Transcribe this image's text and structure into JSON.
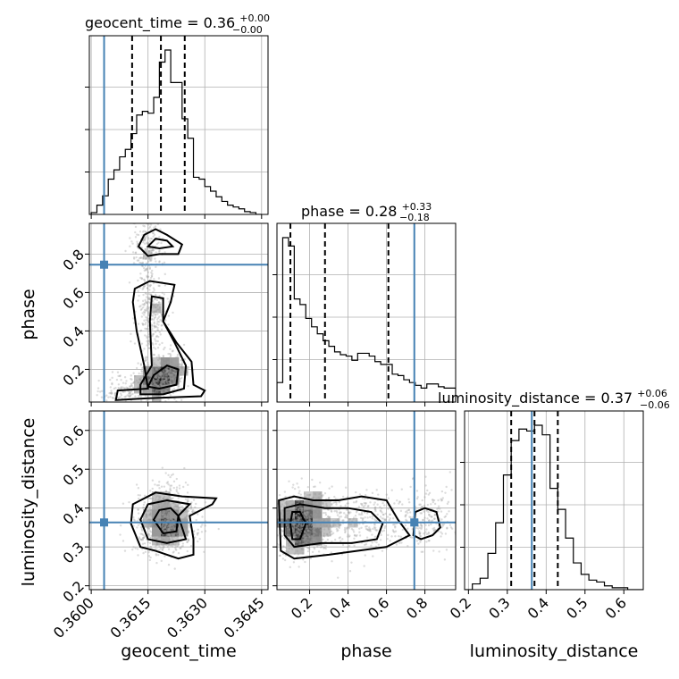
{
  "chart_data": {
    "type": "corner",
    "parameters": [
      "geocent_time",
      "phase",
      "luminosity_distance"
    ],
    "axis_labels": {
      "geocent_time": "geocent_time",
      "phase": "phase",
      "luminosity_distance": "luminosity_distance"
    },
    "titles": {
      "geocent_time": {
        "name": "geocent_time",
        "median": "0.36",
        "plus": "+0.00",
        "minus": "−0.00"
      },
      "phase": {
        "name": "phase",
        "median": "0.28",
        "plus": "+0.33",
        "minus": "−0.18"
      },
      "luminosity_distance": {
        "name": "luminosity_distance",
        "median": "0.37",
        "plus": "+0.06",
        "minus": "−0.06"
      }
    },
    "ranges": {
      "geocent_time": [
        0.35995,
        0.36467
      ],
      "phase": [
        0.03,
        0.96
      ],
      "luminosity_distance": [
        0.19,
        0.65
      ]
    },
    "ticks": {
      "geocent_time": [
        0.36,
        0.3615,
        0.363,
        0.3645
      ],
      "phase": [
        0.2,
        0.4,
        0.6,
        0.8
      ],
      "luminosity_distance": [
        0.2,
        0.3,
        0.4,
        0.5,
        0.6
      ]
    },
    "tick_labels": {
      "geocent_time": [
        "0.3600",
        "0.3615",
        "0.3630",
        "0.3645"
      ],
      "phase": [
        "0.2",
        "0.4",
        "0.6",
        "0.8"
      ],
      "luminosity_distance": [
        "0.2",
        "0.3",
        "0.4",
        "0.5",
        "0.6"
      ]
    },
    "truths": {
      "geocent_time": 0.36034,
      "phase": 0.745,
      "luminosity_distance": 0.363
    },
    "quantiles": {
      "geocent_time": [
        0.36108,
        0.36184,
        0.36247
      ],
      "phase": [
        0.1,
        0.28,
        0.61
      ],
      "luminosity_distance": [
        0.31,
        0.37,
        0.43
      ]
    },
    "histograms": {
      "geocent_time": {
        "edges": [
          0.36,
          0.36015,
          0.3603,
          0.36045,
          0.3606,
          0.36075,
          0.3609,
          0.36105,
          0.3612,
          0.36135,
          0.3615,
          0.36165,
          0.3618,
          0.36195,
          0.3621,
          0.36225,
          0.3624,
          0.36255,
          0.3627,
          0.36285,
          0.363,
          0.36315,
          0.3633,
          0.36345,
          0.3636,
          0.36375,
          0.3639,
          0.36405,
          0.3642,
          0.36435,
          0.3645
        ],
        "counts": [
          2,
          10,
          20,
          38,
          48,
          62,
          70,
          87,
          107,
          111,
          109,
          126,
          164,
          177,
          142,
          142,
          103,
          82,
          40,
          38,
          30,
          25,
          19,
          14,
          10,
          8,
          6,
          3,
          2,
          0
        ]
      },
      "phase": {
        "edges": [
          0.03,
          0.06,
          0.09,
          0.12,
          0.15,
          0.18,
          0.21,
          0.24,
          0.27,
          0.3,
          0.33,
          0.36,
          0.39,
          0.42,
          0.45,
          0.48,
          0.51,
          0.54,
          0.57,
          0.6,
          0.63,
          0.66,
          0.69,
          0.72,
          0.75,
          0.78,
          0.81,
          0.84,
          0.87,
          0.9,
          0.93,
          0.96
        ],
        "counts": [
          14,
          118,
          112,
          74,
          70,
          60,
          54,
          49,
          44,
          40,
          36,
          34,
          33,
          30,
          35,
          35,
          33,
          29,
          27,
          27,
          20,
          19,
          16,
          14,
          12,
          10,
          13,
          13,
          11,
          10,
          10
        ]
      },
      "luminosity_distance": {
        "edges": [
          0.19,
          0.21,
          0.23,
          0.25,
          0.27,
          0.29,
          0.31,
          0.33,
          0.35,
          0.37,
          0.39,
          0.41,
          0.43,
          0.45,
          0.47,
          0.49,
          0.51,
          0.53,
          0.55,
          0.57,
          0.59,
          0.61,
          0.63,
          0.65
        ],
        "counts": [
          0,
          3,
          6,
          19,
          35,
          60,
          78,
          84,
          83,
          86,
          81,
          53,
          42,
          27,
          14,
          8,
          5,
          4,
          2,
          1,
          1,
          0,
          0
        ]
      }
    },
    "density_2d": {
      "phase_vs_geocent_time": {
        "x_param": "geocent_time",
        "y_param": "phase",
        "clusters": [
          {
            "cx": 0.36168,
            "cy": 0.14,
            "sx": 0.00022,
            "sy": 0.05,
            "n": 380,
            "dark": 1.0
          },
          {
            "cx": 0.36212,
            "cy": 0.2,
            "sx": 0.00018,
            "sy": 0.05,
            "n": 260,
            "dark": 0.85
          },
          {
            "cx": 0.36158,
            "cy": 0.48,
            "sx": 0.0002,
            "sy": 0.12,
            "n": 280,
            "dark": 0.5
          },
          {
            "cx": 0.3615,
            "cy": 0.82,
            "sx": 0.00022,
            "sy": 0.07,
            "n": 180,
            "dark": 0.5
          },
          {
            "cx": 0.36085,
            "cy": 0.09,
            "sx": 0.0003,
            "sy": 0.04,
            "n": 150,
            "dark": 0.4
          }
        ],
        "contours": [
          [
            [
              0.36065,
              0.04
            ],
            [
              0.3607,
              0.09
            ],
            [
              0.3615,
              0.1
            ],
            [
              0.3614,
              0.22
            ],
            [
              0.3612,
              0.4
            ],
            [
              0.3611,
              0.55
            ],
            [
              0.36115,
              0.62
            ],
            [
              0.36155,
              0.66
            ],
            [
              0.3622,
              0.64
            ],
            [
              0.3621,
              0.55
            ],
            [
              0.3619,
              0.45
            ],
            [
              0.36225,
              0.34
            ],
            [
              0.36265,
              0.24
            ],
            [
              0.3627,
              0.12
            ],
            [
              0.363,
              0.09
            ],
            [
              0.3629,
              0.06
            ],
            [
              0.3615,
              0.05
            ],
            [
              0.36065,
              0.04
            ]
          ],
          [
            [
              0.3613,
              0.07
            ],
            [
              0.3613,
              0.12
            ],
            [
              0.3616,
              0.22
            ],
            [
              0.36155,
              0.45
            ],
            [
              0.3616,
              0.58
            ],
            [
              0.3619,
              0.57
            ],
            [
              0.3619,
              0.45
            ],
            [
              0.3622,
              0.34
            ],
            [
              0.3625,
              0.22
            ],
            [
              0.36245,
              0.1
            ],
            [
              0.3619,
              0.07
            ],
            [
              0.3613,
              0.07
            ]
          ],
          [
            [
              0.3615,
              0.11
            ],
            [
              0.36165,
              0.17
            ],
            [
              0.362,
              0.22
            ],
            [
              0.3623,
              0.2
            ],
            [
              0.36225,
              0.12
            ],
            [
              0.3618,
              0.1
            ],
            [
              0.3615,
              0.11
            ]
          ],
          [
            [
              0.36125,
              0.84
            ],
            [
              0.3614,
              0.9
            ],
            [
              0.3617,
              0.93
            ],
            [
              0.362,
              0.9
            ],
            [
              0.3624,
              0.85
            ],
            [
              0.3623,
              0.8
            ],
            [
              0.3618,
              0.8
            ],
            [
              0.3615,
              0.79
            ],
            [
              0.36125,
              0.84
            ]
          ],
          [
            [
              0.3615,
              0.84
            ],
            [
              0.3617,
              0.88
            ],
            [
              0.362,
              0.87
            ],
            [
              0.36215,
              0.84
            ],
            [
              0.3618,
              0.83
            ],
            [
              0.3615,
              0.84
            ]
          ]
        ]
      },
      "luminosity_distance_vs_geocent_time": {
        "x_param": "geocent_time",
        "y_param": "luminosity_distance",
        "clusters": [
          {
            "cx": 0.36195,
            "cy": 0.37,
            "sx": 0.0004,
            "sy": 0.04,
            "n": 800,
            "dark": 1.0
          },
          {
            "cx": 0.3621,
            "cy": 0.35,
            "sx": 0.0002,
            "sy": 0.02,
            "n": 250,
            "dark": 1.0
          }
        ],
        "contours": [
          [
            [
              0.36105,
              0.36
            ],
            [
              0.3611,
              0.41
            ],
            [
              0.3617,
              0.44
            ],
            [
              0.3624,
              0.43
            ],
            [
              0.3633,
              0.425
            ],
            [
              0.3632,
              0.41
            ],
            [
              0.3626,
              0.38
            ],
            [
              0.3627,
              0.32
            ],
            [
              0.3627,
              0.28
            ],
            [
              0.3623,
              0.27
            ],
            [
              0.3617,
              0.29
            ],
            [
              0.3613,
              0.3
            ],
            [
              0.36105,
              0.36
            ]
          ],
          [
            [
              0.3613,
              0.37
            ],
            [
              0.3615,
              0.41
            ],
            [
              0.362,
              0.42
            ],
            [
              0.3626,
              0.41
            ],
            [
              0.3623,
              0.38
            ],
            [
              0.3625,
              0.32
            ],
            [
              0.362,
              0.31
            ],
            [
              0.3615,
              0.32
            ],
            [
              0.3613,
              0.37
            ]
          ],
          [
            [
              0.36165,
              0.37
            ],
            [
              0.3618,
              0.395
            ],
            [
              0.3621,
              0.4
            ],
            [
              0.3623,
              0.38
            ],
            [
              0.36225,
              0.34
            ],
            [
              0.3619,
              0.335
            ],
            [
              0.36165,
              0.37
            ]
          ]
        ]
      },
      "luminosity_distance_vs_phase": {
        "x_param": "phase",
        "y_param": "luminosity_distance",
        "clusters": [
          {
            "cx": 0.16,
            "cy": 0.36,
            "sx": 0.07,
            "sy": 0.04,
            "n": 700,
            "dark": 1.0
          },
          {
            "cx": 0.45,
            "cy": 0.37,
            "sx": 0.14,
            "sy": 0.04,
            "n": 380,
            "dark": 0.55
          },
          {
            "cx": 0.82,
            "cy": 0.37,
            "sx": 0.07,
            "sy": 0.04,
            "n": 180,
            "dark": 0.4
          }
        ],
        "contours": [
          [
            [
              0.04,
              0.42
            ],
            [
              0.12,
              0.43
            ],
            [
              0.22,
              0.42
            ],
            [
              0.35,
              0.42
            ],
            [
              0.47,
              0.43
            ],
            [
              0.6,
              0.42
            ],
            [
              0.66,
              0.37
            ],
            [
              0.72,
              0.33
            ],
            [
              0.6,
              0.3
            ],
            [
              0.45,
              0.29
            ],
            [
              0.3,
              0.28
            ],
            [
              0.12,
              0.27
            ],
            [
              0.05,
              0.29
            ],
            [
              0.04,
              0.42
            ]
          ],
          [
            [
              0.07,
              0.4
            ],
            [
              0.15,
              0.41
            ],
            [
              0.28,
              0.4
            ],
            [
              0.4,
              0.4
            ],
            [
              0.52,
              0.39
            ],
            [
              0.58,
              0.36
            ],
            [
              0.55,
              0.32
            ],
            [
              0.42,
              0.31
            ],
            [
              0.26,
              0.31
            ],
            [
              0.12,
              0.3
            ],
            [
              0.07,
              0.33
            ],
            [
              0.07,
              0.4
            ]
          ],
          [
            [
              0.1,
              0.36
            ],
            [
              0.11,
              0.39
            ],
            [
              0.15,
              0.39
            ],
            [
              0.18,
              0.36
            ],
            [
              0.15,
              0.32
            ],
            [
              0.11,
              0.32
            ],
            [
              0.1,
              0.36
            ]
          ],
          [
            [
              0.74,
              0.33
            ],
            [
              0.75,
              0.39
            ],
            [
              0.8,
              0.4
            ],
            [
              0.86,
              0.39
            ],
            [
              0.88,
              0.35
            ],
            [
              0.84,
              0.33
            ],
            [
              0.78,
              0.32
            ],
            [
              0.74,
              0.33
            ]
          ]
        ]
      }
    },
    "contour_levels": [
      0.39,
      0.86,
      0.99
    ]
  }
}
